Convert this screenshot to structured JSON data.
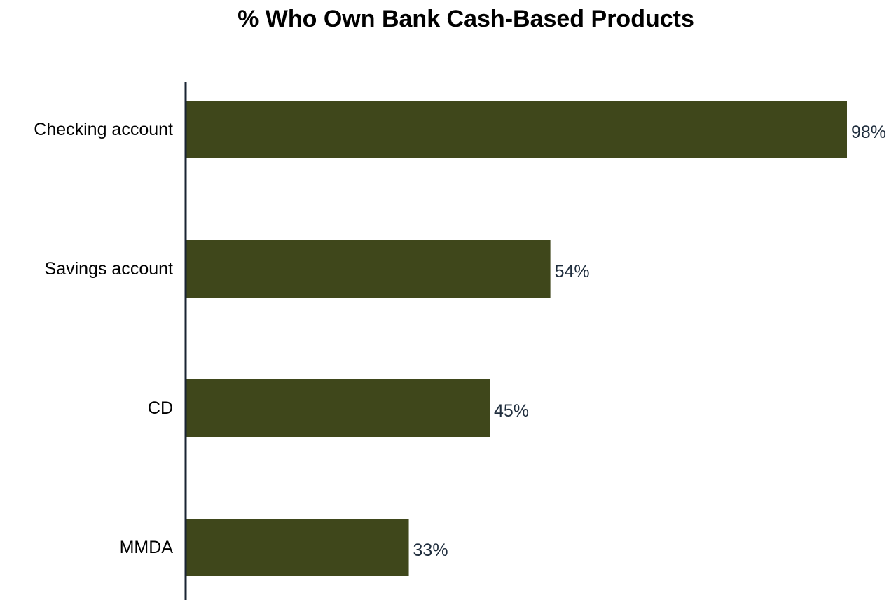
{
  "chart_data": {
    "type": "bar",
    "orientation": "horizontal",
    "title": "% Who Own Bank Cash-Based Products",
    "categories": [
      "Checking account",
      "Savings account",
      "CD",
      "MMDA"
    ],
    "values": [
      98,
      54,
      45,
      33
    ],
    "value_labels": [
      "98%",
      "54%",
      "45%",
      "33%"
    ],
    "xlim": [
      0,
      98
    ],
    "xlabel": "",
    "ylabel": "",
    "grid": false,
    "legend": "none",
    "bar_color": "#3f471b",
    "axis_color": "#1a2433"
  }
}
